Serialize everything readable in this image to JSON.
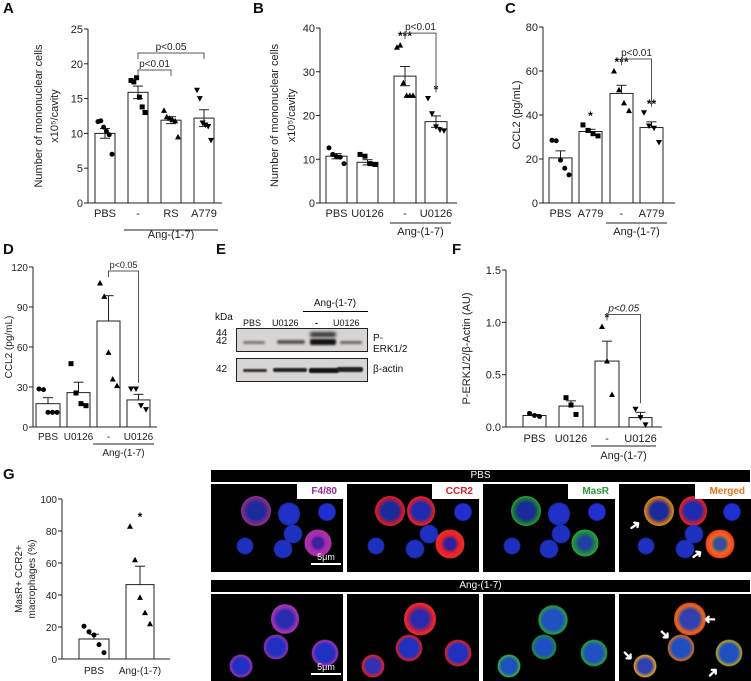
{
  "chart_data": [
    {
      "panel": "A",
      "type": "bar",
      "ylabel": "Number of mononuclear cells x10^5/cavity",
      "ylabel_line1": "Number of mononuclear cells",
      "ylabel_line2": "x10⁵/cavity",
      "ylim": [
        0,
        25
      ],
      "yticks": [
        0,
        5,
        10,
        15,
        20,
        25
      ],
      "categories": [
        "PBS",
        "-",
        "RS",
        "A779"
      ],
      "group_label": "Ang-(1-7)",
      "group_indices": [
        1,
        2,
        3
      ],
      "values": [
        10.0,
        15.9,
        11.9,
        12.2
      ],
      "sem": [
        0.7,
        0.9,
        0.5,
        1.2
      ],
      "points": [
        [
          11.7,
          11.8,
          10.9,
          10.3,
          9.8,
          7.0
        ],
        [
          17.6,
          17.4,
          18.0,
          15.2,
          13.8,
          13.0
        ],
        [
          13.3,
          12.4,
          12.2,
          12.0,
          11.8,
          9.5
        ],
        [
          16.2,
          15.0,
          11.5,
          11.2,
          11.0,
          9.0
        ]
      ],
      "markers": [
        "circle",
        "square",
        "triangle-up",
        "triangle-down"
      ],
      "annotations": [
        {
          "text": "p<0.01",
          "from": 1,
          "to": 2
        },
        {
          "text": "p<0.05",
          "from": 1,
          "to": 3
        }
      ]
    },
    {
      "panel": "B",
      "type": "bar",
      "ylabel_line1": "Number of mononuclear cells",
      "ylabel_line2": "x10⁵/cavity",
      "ylim": [
        0,
        40
      ],
      "yticks": [
        0,
        10,
        20,
        30,
        40
      ],
      "categories": [
        "PBS",
        "U0126",
        "-",
        "U0126"
      ],
      "group_label": "Ang-(1-7)",
      "group_indices": [
        2,
        3
      ],
      "values": [
        10.7,
        9.3,
        29.0,
        18.6
      ],
      "sem": [
        0.6,
        0.6,
        2.2,
        1.3
      ],
      "points": [
        [
          12.6,
          11.1,
          10.6,
          10.5,
          9.0
        ],
        [
          11.1,
          10.7,
          9.0,
          8.8
        ],
        [
          35.6,
          36.1,
          27.5,
          24.6,
          24.6,
          24.6
        ],
        [
          23.9,
          20.4,
          17.4,
          16.7,
          16.5
        ]
      ],
      "markers": [
        "circle",
        "square",
        "triangle-up",
        "triangle-down"
      ],
      "stars": [
        "",
        "",
        "***",
        "*"
      ],
      "annotations": [
        {
          "text": "p<0.01",
          "from": 2,
          "to": 3
        }
      ]
    },
    {
      "panel": "C",
      "type": "bar",
      "ylabel": "CCL2 (pg/mL)",
      "ylim": [
        0,
        80
      ],
      "yticks": [
        0,
        20,
        40,
        60,
        80
      ],
      "categories": [
        "PBS",
        "A779",
        "-",
        "A779"
      ],
      "group_label": "Ang-(1-7)",
      "group_indices": [
        2,
        3
      ],
      "values": [
        20.5,
        32.5,
        49.8,
        34.3
      ],
      "sem": [
        3.2,
        1.0,
        3.7,
        2.6
      ],
      "points": [
        [
          28.5,
          28.3,
          19.5,
          15.8,
          12.8
        ],
        [
          35.5,
          33.0,
          31.5,
          30.5
        ],
        [
          60.0,
          51.5,
          45.5,
          42.0
        ],
        [
          41.0,
          35.0,
          34.0,
          27.5
        ]
      ],
      "markers": [
        "circle",
        "square",
        "triangle-up",
        "triangle-down"
      ],
      "stars": [
        "",
        "*",
        "***",
        "**"
      ],
      "annotations": [
        {
          "text": "p<0.01",
          "from": 2,
          "to": 3
        }
      ]
    },
    {
      "panel": "D",
      "type": "bar",
      "ylabel": "CCL2 (pg/mL)",
      "ylim": [
        0,
        120
      ],
      "yticks": [
        0,
        30,
        60,
        90,
        120
      ],
      "categories": [
        "PBS",
        "U0126",
        "-",
        "U0126"
      ],
      "group_label": "Ang-(1-7)",
      "group_indices": [
        2,
        3
      ],
      "values": [
        17.5,
        25.8,
        79.5,
        20.3
      ],
      "sem": [
        4.5,
        7.8,
        19.0,
        4.2
      ],
      "points": [
        [
          28.5,
          28.0,
          11.0,
          11.0,
          11.0
        ],
        [
          47.5,
          25.5,
          17.5,
          16.0
        ],
        [
          108.0,
          98.0,
          56.0,
          36.0,
          31.0
        ],
        [
          28.5,
          28.5,
          16.0,
          13.0
        ]
      ],
      "markers": [
        "circle",
        "square",
        "triangle-up",
        "triangle-down"
      ],
      "annotations": [
        {
          "text": "p<0.05",
          "from": 2,
          "to": 3
        }
      ]
    },
    {
      "panel": "F",
      "type": "bar",
      "ylabel": "P-ERK1/2/β-Actin (AU)",
      "ylim": [
        0,
        1.5
      ],
      "yticks": [
        "0.0",
        "0.5",
        "1.0",
        "1.5"
      ],
      "categories": [
        "PBS",
        "U0126",
        "-",
        "U0126"
      ],
      "group_label": "Ang-(1-7)",
      "group_indices": [
        2,
        3
      ],
      "values": [
        0.11,
        0.2,
        0.63,
        0.09
      ],
      "sem": [
        0.01,
        0.05,
        0.19,
        0.05
      ],
      "points": [
        [
          0.13,
          0.11,
          0.1
        ],
        [
          0.28,
          0.21,
          0.12
        ],
        [
          0.96,
          0.63,
          0.31
        ],
        [
          0.17,
          0.09,
          0.02
        ]
      ],
      "markers": [
        "circle",
        "square",
        "triangle-up",
        "triangle-down"
      ],
      "stars": [
        "",
        "",
        "*",
        ""
      ],
      "annotations": [
        {
          "text": "p<0.05",
          "from": 2,
          "to": 3,
          "italic_p": true
        }
      ]
    },
    {
      "panel": "G",
      "type": "bar",
      "ylabel_line1": "MasR+ CCR2+",
      "ylabel_line2": "macrophages (%)",
      "ylim": [
        0,
        100
      ],
      "yticks": [
        0,
        20,
        40,
        60,
        80,
        100
      ],
      "categories": [
        "PBS",
        "Ang-(1-7)"
      ],
      "values": [
        12.5,
        46.5
      ],
      "sem": [
        3.0,
        11.5
      ],
      "points": [
        [
          20.5,
          17.0,
          15.0,
          9.0,
          4.0
        ],
        [
          83.0,
          62.0,
          38.5,
          29.0,
          22.0
        ]
      ],
      "markers": [
        "circle",
        "triangle-up"
      ],
      "stars": [
        "",
        "*"
      ]
    }
  ],
  "panels": {
    "A": "A",
    "B": "B",
    "C": "C",
    "D": "D",
    "E": "E",
    "F": "F",
    "G": "G"
  },
  "blot": {
    "kda_label": "kDa",
    "group_label": "Ang-(1-7)",
    "lanes": [
      "PBS",
      "U0126",
      "-",
      "U0126"
    ],
    "rows": [
      {
        "name": "P-ERK1/2",
        "markers": [
          "44",
          "42"
        ]
      },
      {
        "name": "β-actin",
        "markers": [
          "42"
        ]
      }
    ]
  },
  "microscopy": {
    "conditions": [
      "PBS",
      "Ang-(1-7)"
    ],
    "channels": [
      {
        "label": "F4/80",
        "color": "#a0309a"
      },
      {
        "label": "CCR2",
        "color": "#e0202a"
      },
      {
        "label": "MasR",
        "color": "#2a9a3a"
      },
      {
        "label": "Merged",
        "color": "#e8741c"
      }
    ],
    "scale_bar": "5μm"
  }
}
